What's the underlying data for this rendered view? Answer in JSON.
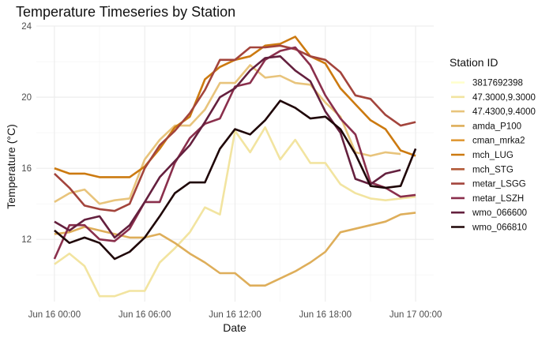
{
  "chart_data": {
    "type": "line",
    "title": "Temperature Timeseries by Station",
    "xlabel": "Date",
    "ylabel": "Temperature (°C)",
    "x_ticks": [
      "Jun 16 00:00",
      "Jun 16 06:00",
      "Jun 16 12:00",
      "Jun 16 18:00",
      "Jun 17 00:00"
    ],
    "y_ticks": [
      "12",
      "16",
      "20",
      "24"
    ],
    "ylim": [
      8.5,
      24
    ],
    "xlim_hours": [
      -1.2,
      25.2
    ],
    "grid": true,
    "legend_title": "Station ID",
    "legend_position": "right",
    "hours": [
      0,
      1,
      2,
      3,
      4,
      5,
      6,
      7,
      8,
      9,
      10,
      11,
      12,
      13,
      14,
      15,
      16,
      17,
      18,
      19,
      20,
      21,
      22,
      23,
      24
    ],
    "series": [
      {
        "name": "3817692398",
        "color": "#ffffcc",
        "values": []
      },
      {
        "name": "47.3000,9.3000",
        "color": "#f2e4a0",
        "values": [
          10.6,
          11.2,
          10.5,
          8.8,
          8.8,
          9.1,
          9.1,
          10.7,
          11.5,
          12.4,
          13.8,
          13.4,
          18.1,
          16.9,
          18.3,
          16.5,
          17.6,
          16.3,
          16.3,
          15.1,
          14.6,
          14.3,
          14.2,
          14.3,
          14.4
        ]
      },
      {
        "name": "47.4300,9.4000",
        "color": "#e8c47c",
        "values": [
          14.1,
          14.6,
          14.8,
          14.0,
          14.2,
          14.3,
          16.5,
          17.6,
          18.4,
          18.4,
          19.3,
          20.8,
          20.8,
          21.8,
          21.1,
          21.2,
          20.8,
          20.7,
          19.7,
          18.9,
          16.9,
          16.7,
          16.9,
          16.8,
          null
        ]
      },
      {
        "name": "amda_P100",
        "color": "#deae5a",
        "values": [
          12.3,
          12.4,
          12.7,
          12.5,
          12.3,
          12.1,
          12.1,
          12.3,
          11.8,
          11.2,
          10.7,
          10.1,
          10.1,
          9.4,
          9.4,
          9.8,
          10.2,
          10.7,
          11.3,
          12.4,
          12.6,
          12.8,
          13.0,
          13.4,
          13.5
        ]
      },
      {
        "name": "cman_mrka2",
        "color": "#e09a38",
        "values": []
      },
      {
        "name": "mch_LUG",
        "color": "#cc7a10",
        "values": [
          16.0,
          15.7,
          15.7,
          15.5,
          15.5,
          15.5,
          16.1,
          17.1,
          18.3,
          18.9,
          21.0,
          21.7,
          22.1,
          22.3,
          22.9,
          23.0,
          23.4,
          22.3,
          21.9,
          20.5,
          19.6,
          18.7,
          18.2,
          17.0,
          16.7
        ]
      },
      {
        "name": "mch_STG",
        "color": "#b25a38",
        "values": []
      },
      {
        "name": "metar_LSGG",
        "color": "#a3443c",
        "values": [
          15.7,
          14.9,
          13.9,
          13.7,
          13.6,
          14.0,
          16.0,
          17.3,
          18.1,
          19.1,
          20.4,
          22.1,
          22.1,
          22.8,
          22.8,
          22.9,
          22.7,
          22.3,
          22.1,
          21.4,
          20.1,
          19.9,
          19.0,
          18.4,
          18.6
        ]
      },
      {
        "name": "metar_LSZH",
        "color": "#8a2f4c",
        "values": [
          10.9,
          12.8,
          12.8,
          12.0,
          11.9,
          12.6,
          14.1,
          14.1,
          16.3,
          17.7,
          18.5,
          18.8,
          20.6,
          20.8,
          22.1,
          22.6,
          22.8,
          21.8,
          20.1,
          18.8,
          17.9,
          15.2,
          14.9,
          14.4,
          14.5
        ]
      },
      {
        "name": "wmo_066600",
        "color": "#64203e",
        "values": [
          13.0,
          12.5,
          13.1,
          13.3,
          12.1,
          12.8,
          14.1,
          15.5,
          16.4,
          17.3,
          18.6,
          20.0,
          20.5,
          21.5,
          22.2,
          22.3,
          21.5,
          20.9,
          19.2,
          18.0,
          15.4,
          15.1,
          15.7,
          15.9,
          null
        ]
      },
      {
        "name": "wmo_066810",
        "color": "#1f0608",
        "values": [
          12.5,
          11.8,
          12.1,
          11.8,
          10.9,
          11.3,
          12.1,
          13.3,
          14.6,
          15.2,
          15.2,
          17.1,
          18.2,
          17.9,
          18.7,
          19.8,
          19.4,
          18.8,
          18.9,
          18.2,
          16.8,
          15.0,
          14.9,
          15.0,
          17.1
        ]
      }
    ]
  }
}
